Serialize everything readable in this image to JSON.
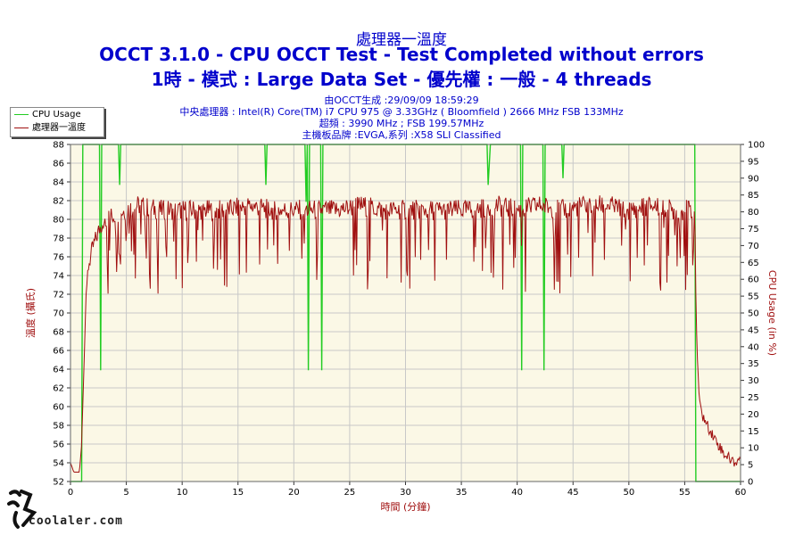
{
  "header": {
    "title": "處理器一溫度",
    "line2": "OCCT 3.1.0 - CPU OCCT Test - Test Completed without errors",
    "line3": "1時 - 模式 : Large Data Set - 優先權 : 一般 - 4 threads",
    "info1": "由OCCT生成 :29/09/09 18:59:29",
    "info2": "中央處理器 : Intel(R) Core(TM) i7 CPU 975 @ 3.33GHz ( Bloomfield ) 2666 MHz FSB 133MHz",
    "info3": "超頻 : 3990 MHz ; FSB 199.57MHz",
    "info4": "主機板品牌 :EVGA,系列 :X58 SLI Classified"
  },
  "legend": {
    "cpu_usage": "CPU Usage",
    "temperature": "處理器一溫度"
  },
  "watermark": {
    "text": "coolaler.com"
  },
  "colors": {
    "temperature": "#a01010",
    "cpu_usage": "#22cc22",
    "plot_bg": "#fbf8e6",
    "title": "#0000cc",
    "axis_label": "#a01010"
  },
  "chart_data": {
    "type": "line",
    "xlabel": "時間 (分鐘)",
    "ylabel_left": "溫度 (攝氏)",
    "ylabel_right": "CPU Usage (in %)",
    "xlim": [
      0,
      60
    ],
    "ylim_left": [
      52,
      88
    ],
    "ylim_right": [
      0,
      100
    ],
    "x_ticks": [
      0,
      5,
      10,
      15,
      20,
      25,
      30,
      35,
      40,
      45,
      50,
      55,
      60
    ],
    "y_left_ticks": [
      52,
      54,
      56,
      58,
      60,
      62,
      64,
      66,
      68,
      70,
      72,
      74,
      76,
      78,
      80,
      82,
      84,
      86,
      88
    ],
    "y_right_ticks": [
      0,
      5,
      10,
      15,
      20,
      25,
      30,
      35,
      40,
      45,
      50,
      55,
      60,
      65,
      70,
      75,
      80,
      85,
      90,
      95,
      100
    ],
    "grid": true,
    "series": [
      {
        "name": "CPU Usage",
        "axis": "right",
        "points": [
          [
            0,
            0
          ],
          [
            1.0,
            0
          ],
          [
            1.1,
            100
          ],
          [
            2.6,
            100
          ],
          [
            2.7,
            33
          ],
          [
            2.8,
            100
          ],
          [
            4.3,
            100
          ],
          [
            4.4,
            88
          ],
          [
            4.5,
            100
          ],
          [
            17.4,
            100
          ],
          [
            17.5,
            88
          ],
          [
            17.6,
            100
          ],
          [
            21.0,
            100
          ],
          [
            21.1,
            83
          ],
          [
            21.2,
            100
          ],
          [
            21.3,
            33
          ],
          [
            21.4,
            100
          ],
          [
            22.4,
            100
          ],
          [
            22.5,
            33
          ],
          [
            22.6,
            100
          ],
          [
            37.3,
            100
          ],
          [
            37.4,
            88
          ],
          [
            37.6,
            100
          ],
          [
            40.3,
            100
          ],
          [
            40.4,
            33
          ],
          [
            40.5,
            100
          ],
          [
            42.3,
            100
          ],
          [
            42.4,
            33
          ],
          [
            42.5,
            100
          ],
          [
            44.0,
            100
          ],
          [
            44.1,
            90
          ],
          [
            44.2,
            100
          ],
          [
            55.9,
            100
          ],
          [
            56.0,
            0
          ],
          [
            60,
            0
          ]
        ]
      },
      {
        "name": "處理器一溫度",
        "axis": "left",
        "points": [
          [
            0,
            54
          ],
          [
            0.3,
            53
          ],
          [
            0.8,
            53
          ],
          [
            1.0,
            56
          ],
          [
            1.2,
            64
          ],
          [
            1.4,
            72
          ],
          [
            1.6,
            75
          ],
          [
            1.8,
            76
          ],
          [
            2.0,
            77
          ],
          [
            2.3,
            78
          ],
          [
            2.6,
            79
          ],
          [
            3,
            80
          ],
          [
            4,
            80.5
          ],
          [
            5,
            81
          ],
          [
            6,
            81.5
          ],
          [
            8,
            81
          ],
          [
            10,
            81
          ],
          [
            12,
            81
          ],
          [
            14,
            81
          ],
          [
            16,
            81.5
          ],
          [
            18,
            81
          ],
          [
            20,
            81
          ],
          [
            22,
            81
          ],
          [
            24,
            81
          ],
          [
            26,
            81.5
          ],
          [
            28,
            81
          ],
          [
            30,
            81
          ],
          [
            32,
            81
          ],
          [
            34,
            81
          ],
          [
            36,
            81
          ],
          [
            38,
            81.5
          ],
          [
            40,
            81
          ],
          [
            42,
            81.5
          ],
          [
            44,
            81
          ],
          [
            46,
            81.5
          ],
          [
            48,
            81.5
          ],
          [
            50,
            81
          ],
          [
            52,
            81.5
          ],
          [
            54,
            81
          ],
          [
            55.5,
            81
          ],
          [
            55.9,
            81
          ],
          [
            56.0,
            72
          ],
          [
            56.1,
            66
          ],
          [
            56.3,
            61
          ],
          [
            56.6,
            59
          ],
          [
            57,
            58
          ],
          [
            57.5,
            57
          ],
          [
            58,
            56
          ],
          [
            58.5,
            55
          ],
          [
            59,
            54.5
          ],
          [
            59.5,
            54
          ],
          [
            60,
            54.5
          ]
        ]
      }
    ]
  }
}
